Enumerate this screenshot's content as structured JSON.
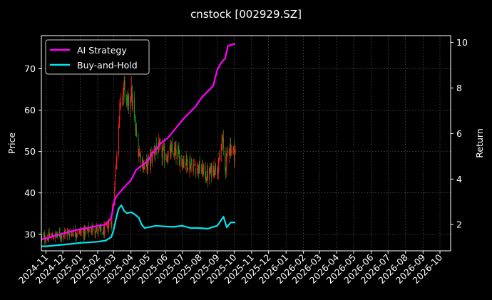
{
  "chart_data": {
    "type": "line",
    "title": "cnstock [002929.SZ]",
    "ylabel_left": "Price",
    "ylabel_right": "Return",
    "ylim_left": [
      26,
      78
    ],
    "ylim_right": [
      0.85,
      10.3
    ],
    "yticks_left": [
      30,
      40,
      50,
      60,
      70
    ],
    "yticks_right": [
      2,
      4,
      6,
      8,
      10
    ],
    "x_range": [
      "2024-10-24",
      "2026-10-20"
    ],
    "x_ticks": [
      "2024-11",
      "2024-12",
      "2025-01",
      "2025-02",
      "2025-03",
      "2025-04",
      "2025-05",
      "2025-06",
      "2025-07",
      "2025-08",
      "2025-09",
      "2025-10",
      "2025-11",
      "2025-12",
      "2026-01",
      "2026-02",
      "2026-03",
      "2026-04",
      "2026-05",
      "2026-06",
      "2026-07",
      "2026-08",
      "2026-09",
      "2026-10"
    ],
    "grid": true,
    "legend_position": "top-left",
    "colors": {
      "background": "#000000",
      "up_candle": "#ff2020",
      "down_candle": "#1a9e1a",
      "grid": "#555555"
    },
    "candles": {
      "up_color": "#ff2020",
      "down_color": "#1a9e1a",
      "close_anchor_dates": [
        "2024-10-24",
        "2024-11-15",
        "2024-12-15",
        "2025-01-10",
        "2025-01-25",
        "2025-02-10",
        "2025-02-25",
        "2025-03-05",
        "2025-03-10",
        "2025-03-15",
        "2025-03-20",
        "2025-03-25",
        "2025-04-01",
        "2025-04-08",
        "2025-04-15",
        "2025-04-25",
        "2025-05-05",
        "2025-05-15",
        "2025-06-01",
        "2025-06-15",
        "2025-07-01",
        "2025-07-15",
        "2025-08-01",
        "2025-08-15",
        "2025-08-25",
        "2025-09-05",
        "2025-09-10",
        "2025-09-15",
        "2025-09-22",
        "2025-09-28",
        "2025-10-03"
      ],
      "close_anchor_values": [
        29.0,
        29.5,
        30.5,
        30.5,
        31.5,
        30.5,
        33.0,
        46.0,
        58.0,
        62.0,
        66.0,
        60.0,
        65.0,
        56.0,
        50.0,
        46.0,
        48.0,
        51.0,
        49.0,
        50.0,
        48.0,
        47.0,
        46.0,
        44.0,
        46.0,
        47.0,
        53.0,
        46.0,
        52.0,
        50.0,
        50.0
      ]
    },
    "series": [
      {
        "name": "AI Strategy",
        "color": "#ff00ff",
        "dates": [
          "2024-10-24",
          "2024-11-01",
          "2024-11-15",
          "2024-12-01",
          "2024-12-15",
          "2025-01-01",
          "2025-01-15",
          "2025-02-01",
          "2025-02-15",
          "2025-02-25",
          "2025-03-03",
          "2025-03-08",
          "2025-03-15",
          "2025-03-22",
          "2025-04-01",
          "2025-04-10",
          "2025-04-20",
          "2025-05-01",
          "2025-05-08",
          "2025-05-15",
          "2025-05-25",
          "2025-06-05",
          "2025-06-15",
          "2025-06-25",
          "2025-07-05",
          "2025-07-15",
          "2025-07-25",
          "2025-08-05",
          "2025-08-15",
          "2025-08-25",
          "2025-09-01",
          "2025-09-08",
          "2025-09-15",
          "2025-09-20",
          "2025-10-03"
        ],
        "values": [
          1.35,
          1.4,
          1.5,
          1.6,
          1.7,
          1.8,
          1.85,
          1.95,
          2.0,
          2.3,
          3.1,
          3.3,
          3.5,
          3.7,
          3.95,
          4.4,
          4.6,
          4.8,
          5.1,
          5.3,
          5.6,
          5.8,
          6.1,
          6.4,
          6.7,
          6.95,
          7.2,
          7.6,
          7.85,
          8.1,
          8.8,
          9.1,
          9.3,
          9.85,
          9.95
        ]
      },
      {
        "name": "Buy-and-Hold",
        "color": "#00e5ee",
        "dates": [
          "2024-10-24",
          "2024-11-01",
          "2024-11-15",
          "2024-12-01",
          "2024-12-15",
          "2025-01-01",
          "2025-01-15",
          "2025-02-01",
          "2025-02-15",
          "2025-02-25",
          "2025-03-01",
          "2025-03-05",
          "2025-03-10",
          "2025-03-15",
          "2025-03-20",
          "2025-03-25",
          "2025-04-01",
          "2025-04-08",
          "2025-04-15",
          "2025-04-20",
          "2025-04-25",
          "2025-05-05",
          "2025-05-15",
          "2025-06-01",
          "2025-06-15",
          "2025-07-01",
          "2025-07-15",
          "2025-08-01",
          "2025-08-15",
          "2025-08-25",
          "2025-09-01",
          "2025-09-08",
          "2025-09-12",
          "2025-09-18",
          "2025-09-25",
          "2025-10-03"
        ],
        "values": [
          1.05,
          1.05,
          1.08,
          1.12,
          1.15,
          1.2,
          1.22,
          1.25,
          1.3,
          1.45,
          1.75,
          2.2,
          2.7,
          2.85,
          2.6,
          2.5,
          2.55,
          2.45,
          2.3,
          2.0,
          1.85,
          1.9,
          1.95,
          1.92,
          1.9,
          1.95,
          1.85,
          1.85,
          1.82,
          1.9,
          1.95,
          2.2,
          2.35,
          1.88,
          2.1,
          2.1
        ]
      }
    ]
  }
}
